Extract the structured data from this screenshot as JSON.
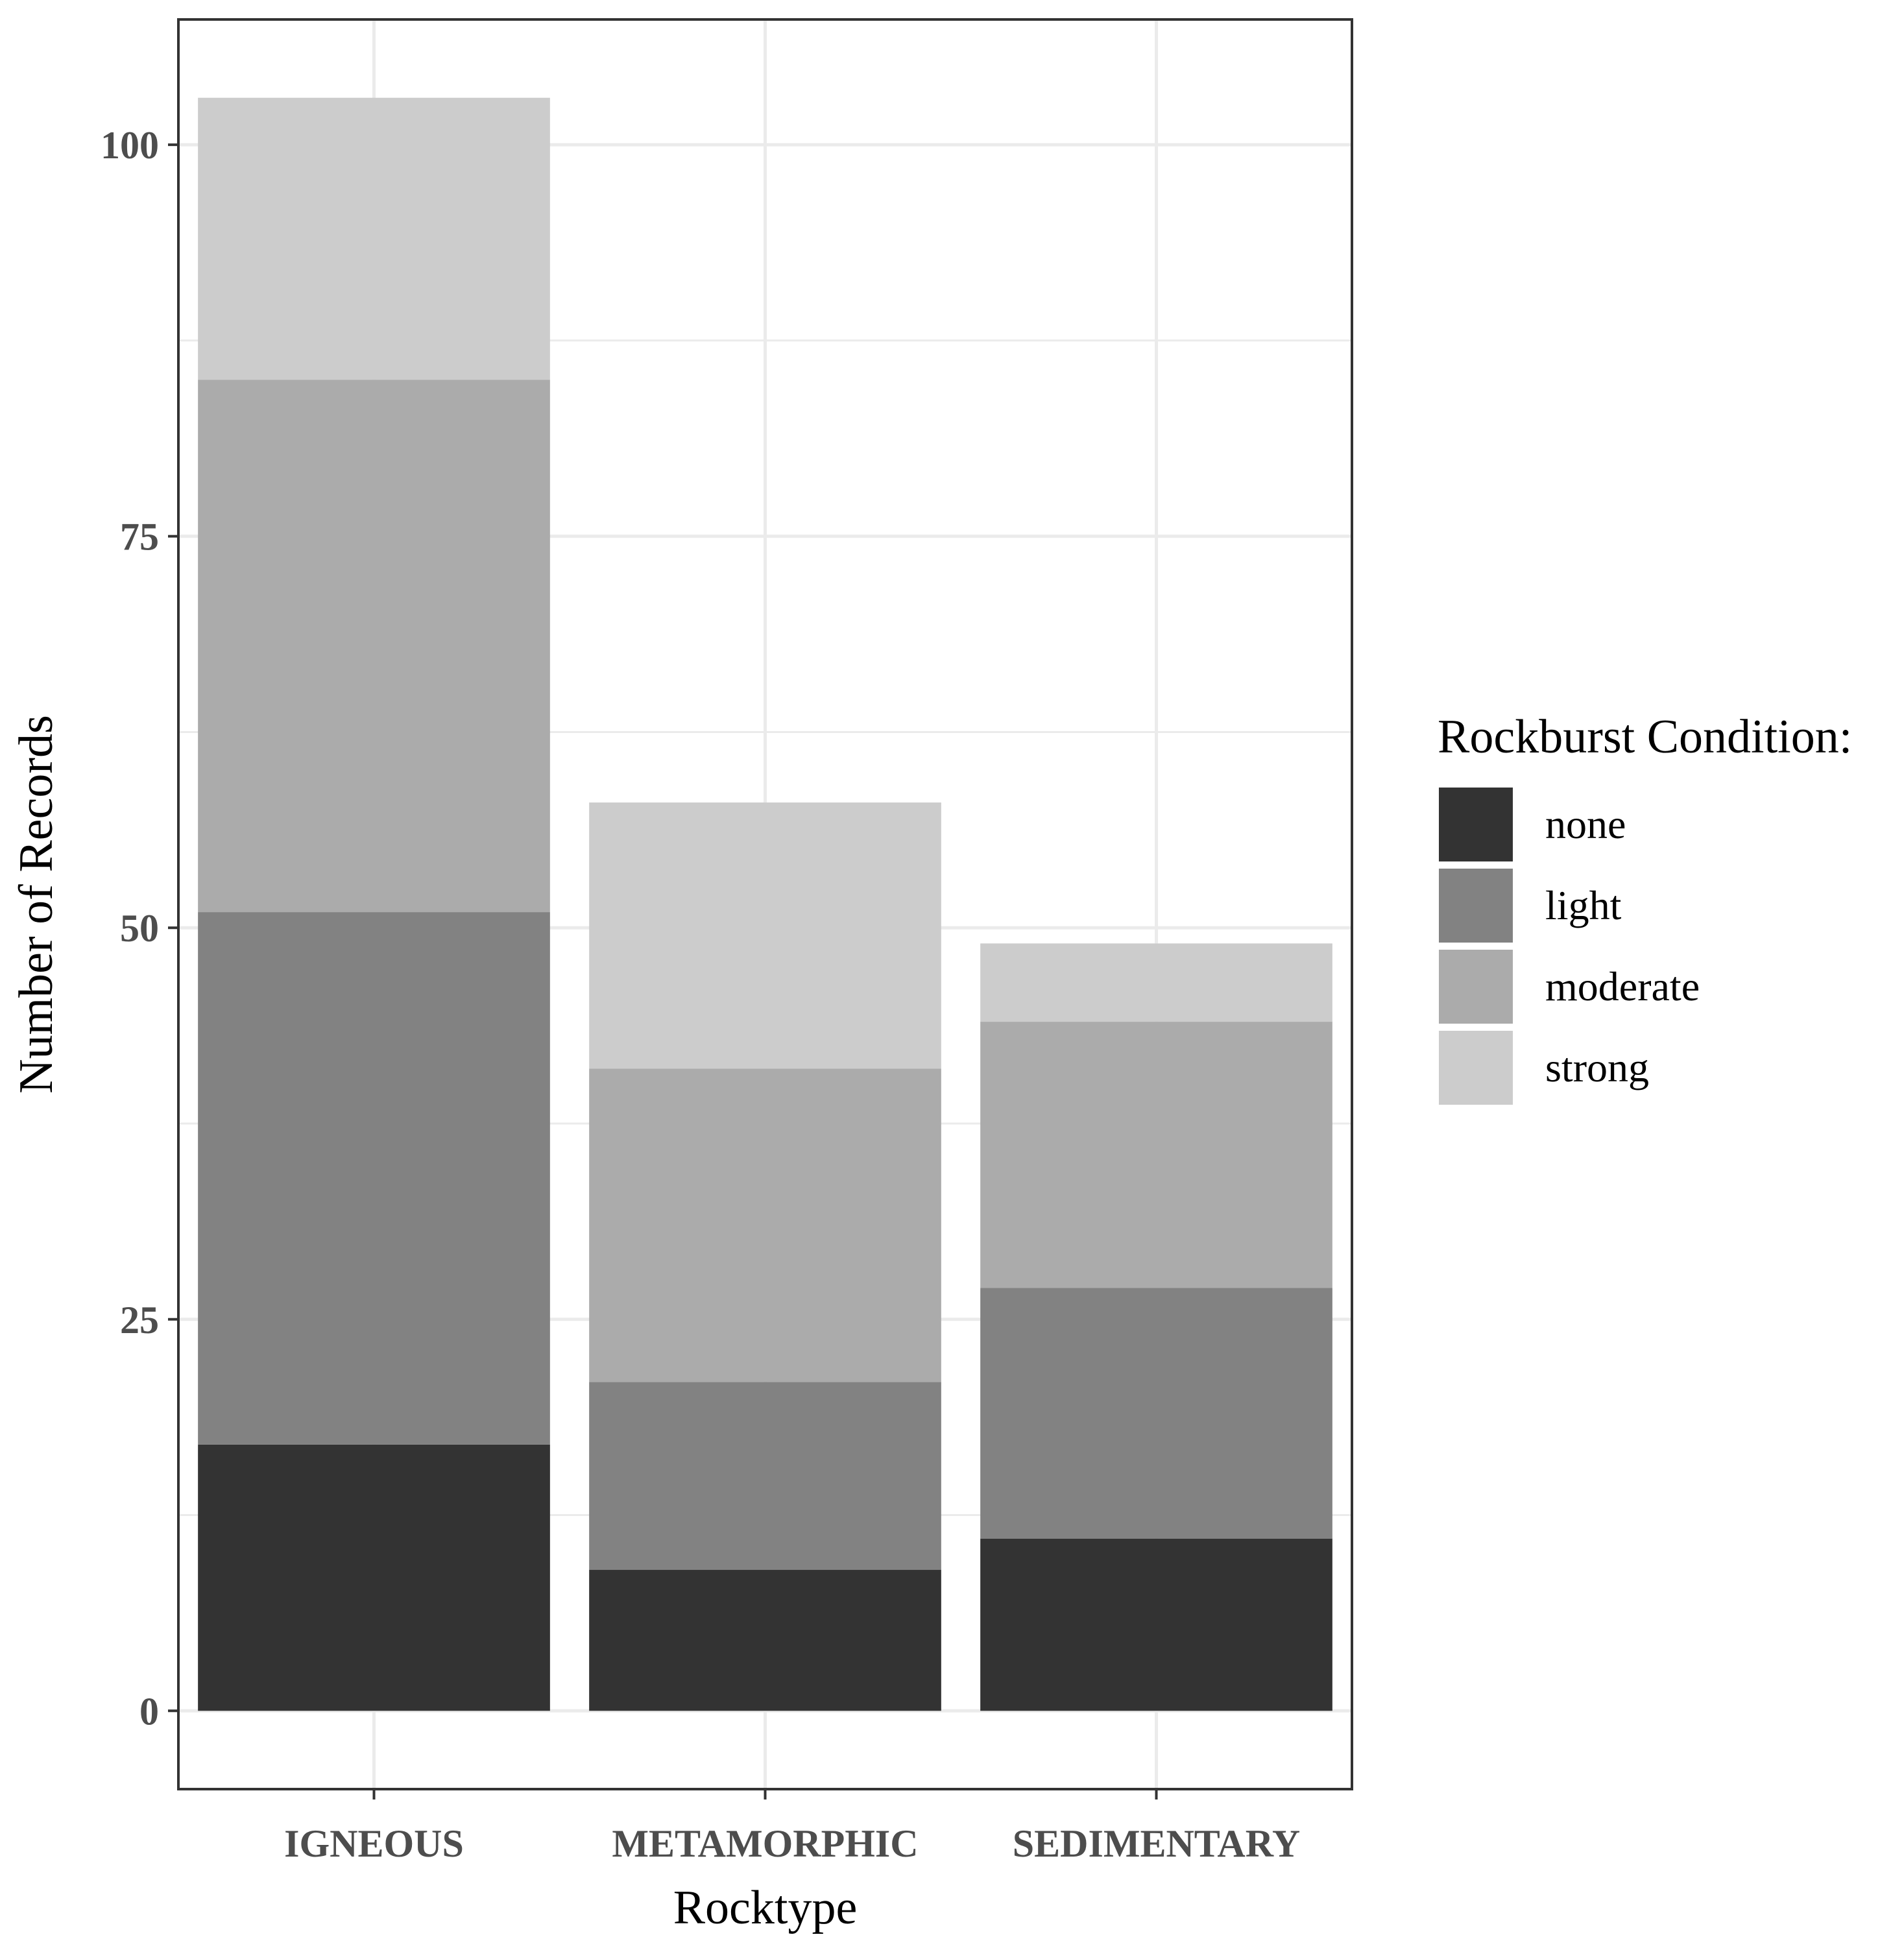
{
  "chart_data": {
    "type": "bar",
    "stacked": true,
    "title": "",
    "xlabel": "Rocktype",
    "ylabel": "Number of Records",
    "categories": [
      "IGNEOUS",
      "METAMORPHIC",
      "SEDIMENTARY"
    ],
    "ylim": [
      -5,
      108
    ],
    "yticks": [
      0,
      25,
      50,
      75,
      100
    ],
    "ytick_labels": [
      "0",
      "25",
      "50",
      "75",
      "100"
    ],
    "grid": true,
    "legend": {
      "title": "Rockburst Condition:",
      "position": "right"
    },
    "series": [
      {
        "name": "none",
        "color": "#333333",
        "values": [
          17,
          9,
          11
        ]
      },
      {
        "name": "light",
        "color": "#828282",
        "values": [
          34,
          12,
          16
        ]
      },
      {
        "name": "moderate",
        "color": "#ababab",
        "values": [
          34,
          20,
          17
        ]
      },
      {
        "name": "strong",
        "color": "#cccccc",
        "values": [
          18,
          17,
          5
        ]
      }
    ]
  }
}
